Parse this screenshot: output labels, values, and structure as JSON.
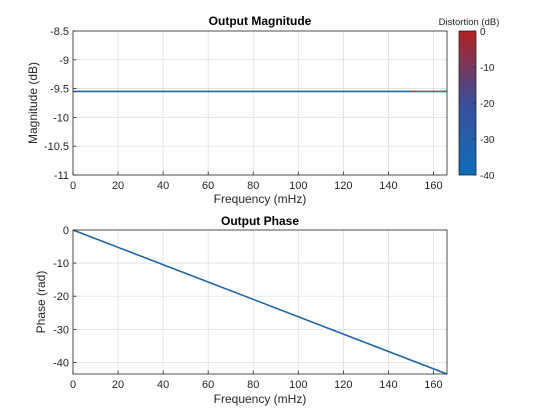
{
  "chart_data": [
    {
      "type": "line",
      "title": "Output Magnitude",
      "xlabel": "Frequency (mHz)",
      "ylabel": "Magnitude (dB)",
      "xlim": [
        0,
        166
      ],
      "ylim": [
        -11,
        -8.5
      ],
      "xticks": [
        0,
        20,
        40,
        60,
        80,
        100,
        120,
        140,
        160
      ],
      "yticks": [
        -11,
        -10.5,
        -10,
        -9.5,
        -9,
        -8.5
      ],
      "ytick_labels": [
        "-11",
        "-10.5",
        "-10",
        "-9.5",
        "-9",
        "-8.5"
      ],
      "grid": true,
      "series": [
        {
          "x": [
            0,
            150,
            166
          ],
          "y": [
            -9.55,
            -9.55,
            -9.55
          ],
          "color": "#1f63a8"
        }
      ],
      "colorbar": {
        "label": "Distortion (dB)",
        "ticks": [
          0,
          -10,
          -20,
          -30,
          -40
        ],
        "ticklabels": [
          "0",
          "-10",
          "-20",
          "-30",
          "-40"
        ],
        "range": [
          -40,
          0
        ],
        "colors": [
          "#0f6db8",
          "#3a4f9a",
          "#b32020"
        ]
      }
    },
    {
      "type": "line",
      "title": "Output Phase",
      "xlabel": "Frequency (mHz)",
      "ylabel": "Phase (rad)",
      "xlim": [
        0,
        166
      ],
      "ylim": [
        -43.5,
        0
      ],
      "xticks": [
        0,
        20,
        40,
        60,
        80,
        100,
        120,
        140,
        160
      ],
      "yticks": [
        -40,
        -30,
        -20,
        -10,
        0
      ],
      "ytick_labels": [
        "-40",
        "-30",
        "-20",
        "-10",
        "0"
      ],
      "grid": true,
      "series": [
        {
          "x": [
            0,
            166
          ],
          "y": [
            0,
            -43.5
          ],
          "color": "#1f63a8"
        }
      ]
    }
  ]
}
